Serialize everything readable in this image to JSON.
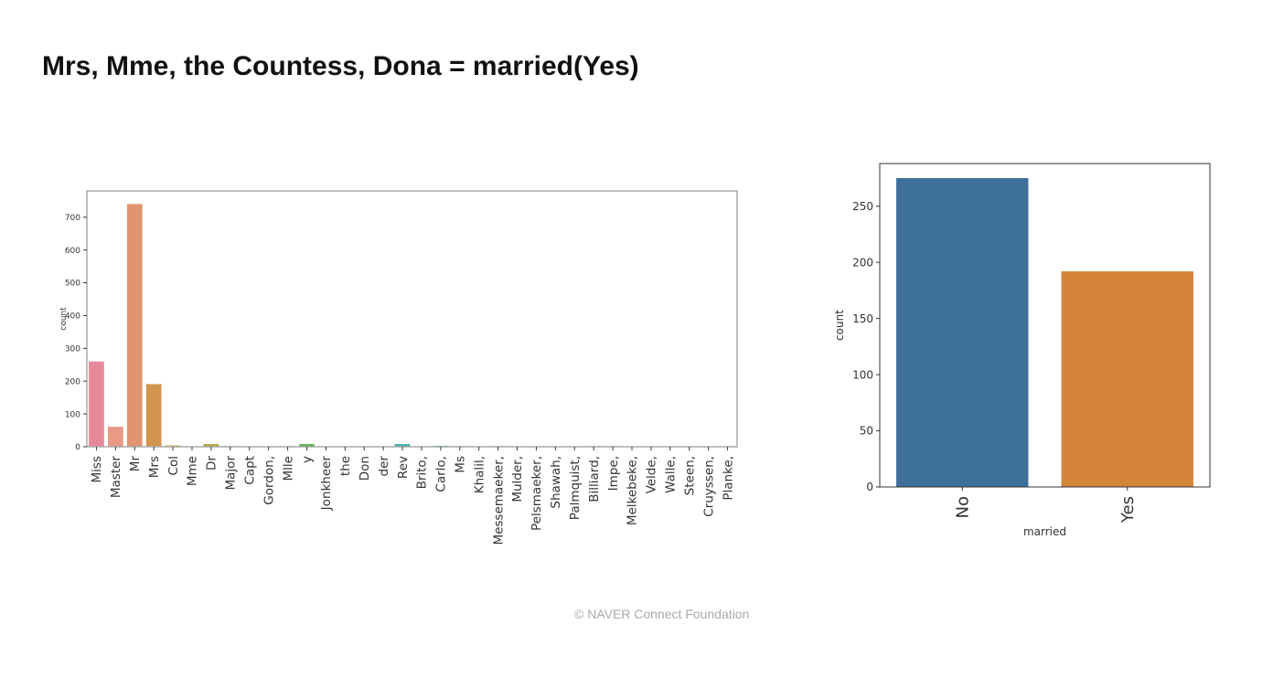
{
  "slide": {
    "title": "Mrs, Mme, the Countess, Dona = married(Yes)",
    "footer": "©  NAVER Connect Foundation"
  },
  "chart_data": [
    {
      "type": "bar",
      "title": "",
      "xlabel": "",
      "ylabel": "count",
      "ylim": [
        0,
        780
      ],
      "yticks": [
        0,
        100,
        200,
        300,
        400,
        500,
        600,
        700
      ],
      "grid": false,
      "categories": [
        "Miss",
        "Master",
        "Mr",
        "Mrs",
        "Col",
        "Mme",
        "Dr",
        "Major",
        "Capt",
        "Gordon,",
        "Mlle",
        "y",
        "Jonkheer",
        "the",
        "Don",
        "der",
        "Rev",
        "Brito,",
        "Carlo,",
        "Ms",
        "Khalil,",
        "Messemaeker,",
        "Mulder,",
        "Pelsmaeker,",
        "Shawah,",
        "Palmquist,",
        "Billiard,",
        "Impe,",
        "Melkebeke,",
        "Velde,",
        "Walle,",
        "Steen,",
        "Cruyssen,",
        "Planke,"
      ],
      "values": [
        260,
        61,
        740,
        191,
        4,
        1,
        8,
        2,
        1,
        1,
        2,
        8,
        1,
        1,
        1,
        1,
        8,
        1,
        3,
        2,
        1,
        2,
        1,
        1,
        1,
        1,
        2,
        2,
        1,
        1,
        1,
        1,
        1,
        2
      ],
      "colors": [
        "#e8899a",
        "#e89a86",
        "#e09570",
        "#d1954f",
        "#c79c3f",
        "#bca23a",
        "#b0a536",
        "#a3a935",
        "#96ad36",
        "#84b137",
        "#6db43a",
        "#55b546",
        "#3cb45b",
        "#33b274",
        "#35b187",
        "#37b098",
        "#38afa6",
        "#3aaeb3",
        "#3badbf",
        "#3dabcb",
        "#40a8d6",
        "#46a4e0",
        "#589eeb",
        "#6f97f0",
        "#878ef3",
        "#9c86f3",
        "#af80f0",
        "#c07ae9",
        "#ce74dd",
        "#da70cf",
        "#e26fbf",
        "#e872ae",
        "#ec7a9d",
        "#ee818e"
      ]
    },
    {
      "type": "bar",
      "title": "",
      "xlabel": "married",
      "ylabel": "count",
      "ylim": [
        0,
        288
      ],
      "yticks": [
        0,
        50,
        100,
        150,
        200,
        250
      ],
      "grid": false,
      "categories": [
        "No",
        "Yes"
      ],
      "values": [
        275,
        192
      ],
      "colors": [
        "#3f6f9b",
        "#d5853a"
      ]
    }
  ]
}
